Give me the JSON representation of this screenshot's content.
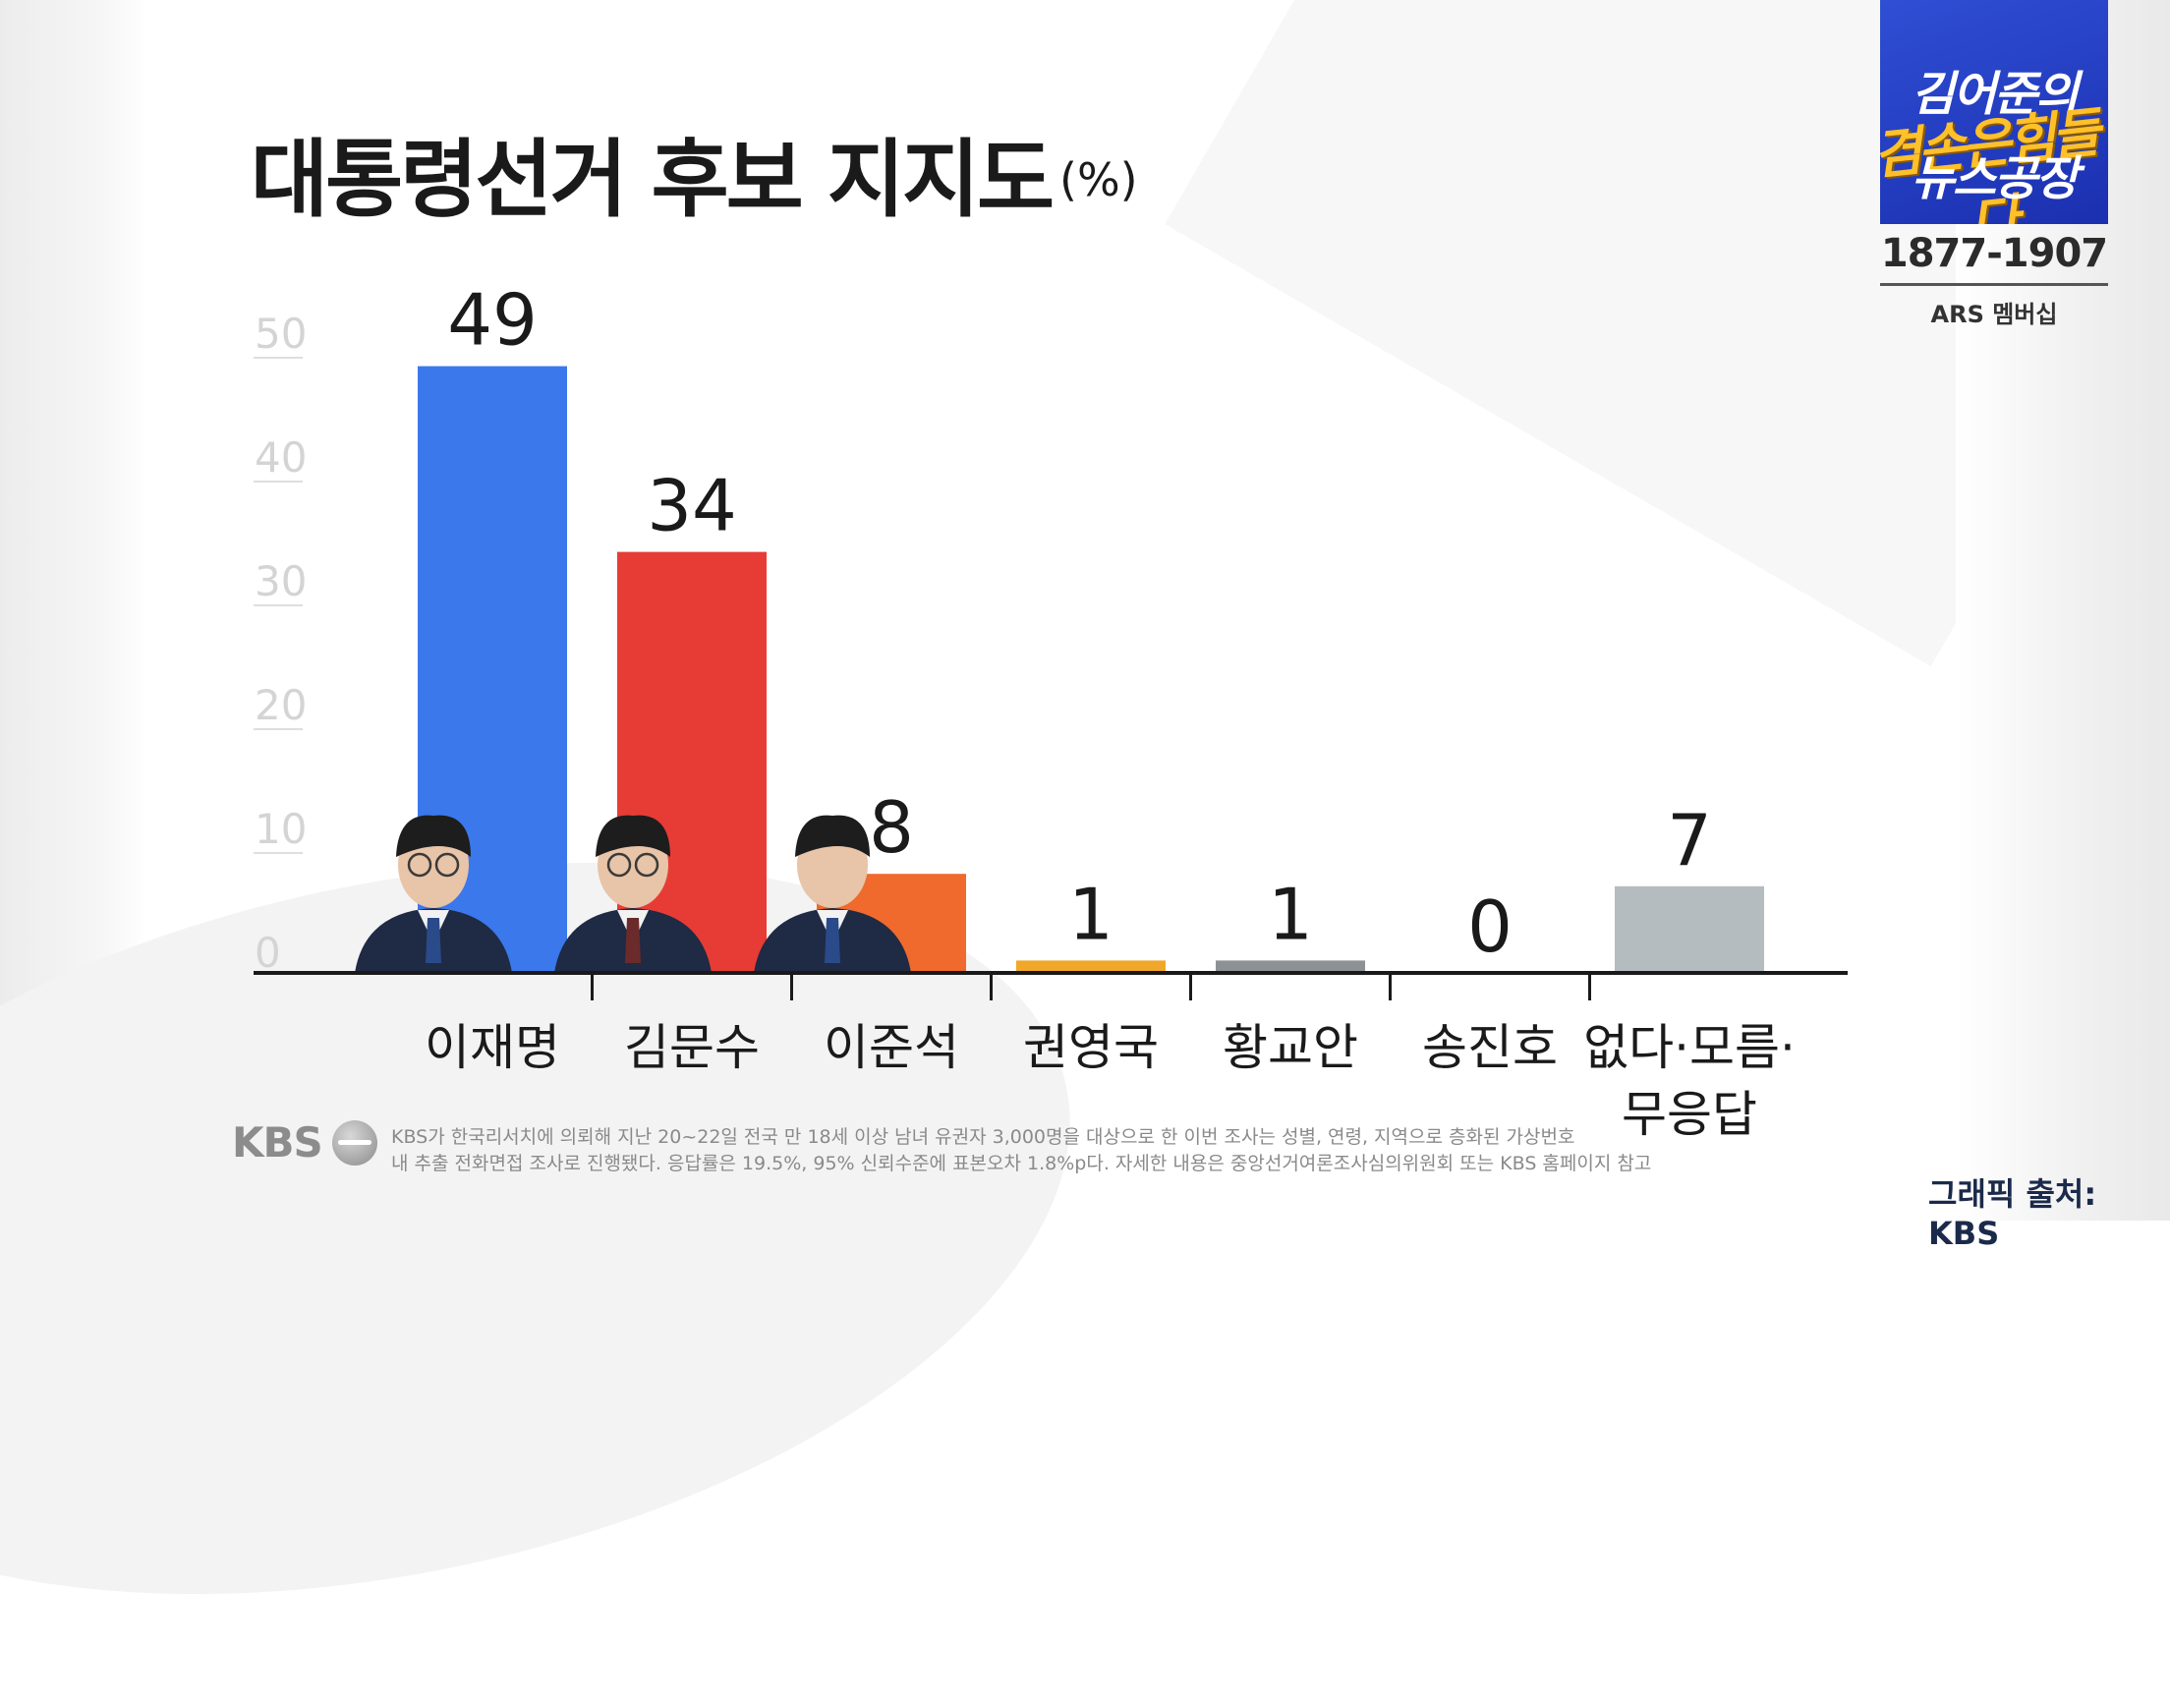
{
  "header": {
    "title": "대통령선거 후보 지지도",
    "unit": "(%)"
  },
  "chart_data": {
    "type": "bar",
    "title": "대통령선거 후보 지지도",
    "ylim": [
      0,
      50
    ],
    "yticks": [
      0,
      10,
      20,
      30,
      40,
      50
    ],
    "categories": [
      "이재명",
      "김문수",
      "이준석",
      "권영국",
      "황교안",
      "송진호",
      "없다·모름·무응답"
    ],
    "category_lines": [
      [
        "이재명"
      ],
      [
        "김문수"
      ],
      [
        "이준석"
      ],
      [
        "권영국"
      ],
      [
        "황교안"
      ],
      [
        "송진호"
      ],
      [
        "없다·모름·",
        "무응답"
      ]
    ],
    "values": [
      49,
      34,
      8,
      1,
      1,
      0,
      7
    ],
    "colors": [
      "#3a78ec",
      "#e73c35",
      "#ef6a2c",
      "#f0a72a",
      "#8d9194",
      "#8d9194",
      "#b5bcbf"
    ],
    "grid": false
  },
  "channel": {
    "line1": "김어준의",
    "line2": "겸손은힘들다",
    "line3": "뉴스공장",
    "phone": "1877-1907",
    "ars": "ARS 멤버십"
  },
  "footer": {
    "brand": "KBS",
    "note_line1": "KBS가 한국리서치에 의뢰해 지난 20~22일 전국 만 18세 이상 남녀 유권자 3,000명을 대상으로 한 이번 조사는 성별, 연령, 지역으로 층화된 가상번호",
    "note_line2": "내 추출 전화면접 조사로 진행됐다. 응답률은 19.5%, 95% 신뢰수준에 표본오차 1.8%p다. 자세한 내용은 중앙선거여론조사심의위원회 또는 KBS 홈페이지 참고",
    "source": "그래픽 출처: KBS"
  }
}
